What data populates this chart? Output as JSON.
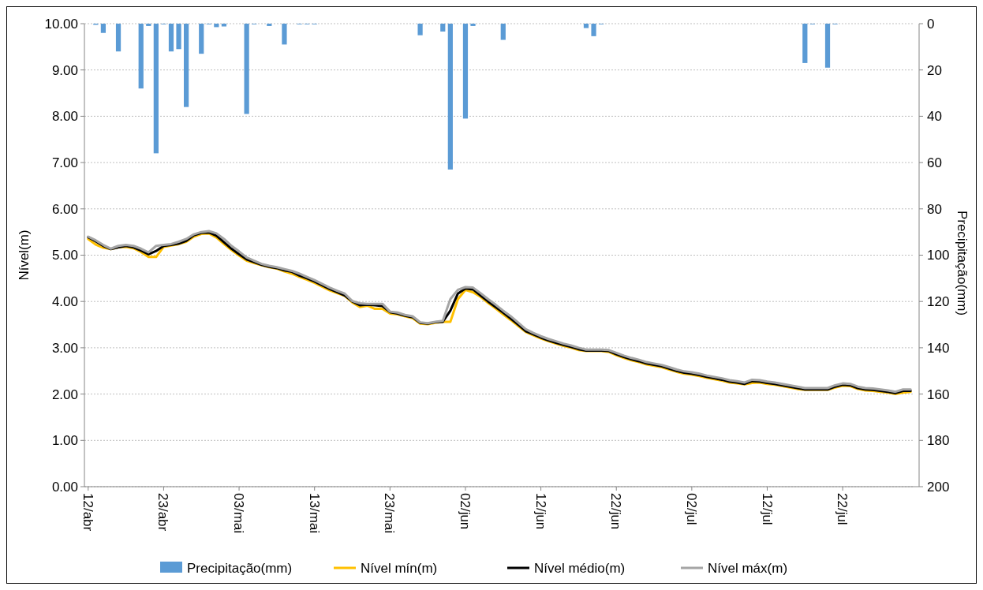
{
  "chart_data": {
    "type": "line",
    "xlabel": null,
    "ylabel": "Nível(m)",
    "y2label": "Precipitação(mm)",
    "categories": [
      "12/abr",
      null,
      null,
      null,
      null,
      null,
      null,
      null,
      null,
      null,
      "23/abr",
      null,
      null,
      null,
      null,
      null,
      null,
      null,
      null,
      null,
      "03/mai",
      null,
      null,
      null,
      null,
      null,
      null,
      null,
      null,
      null,
      "13/mai",
      null,
      null,
      null,
      null,
      null,
      null,
      null,
      null,
      null,
      "23/mai",
      null,
      null,
      null,
      null,
      null,
      null,
      null,
      null,
      null,
      "02/jun",
      null,
      null,
      null,
      null,
      null,
      null,
      null,
      null,
      null,
      "12/jun",
      null,
      null,
      null,
      null,
      null,
      null,
      null,
      null,
      null,
      "22/jun",
      null,
      null,
      null,
      null,
      null,
      null,
      null,
      null,
      null,
      "02/jul",
      null,
      null,
      null,
      null,
      null,
      null,
      null,
      null,
      null,
      "12/jul",
      null,
      null,
      null,
      null,
      null,
      null,
      null,
      null,
      null,
      "22/jul",
      null,
      null,
      null,
      null,
      null,
      null,
      null,
      null,
      null
    ],
    "series": [
      {
        "name": "Precipitação(mm)",
        "type": "bar",
        "axis": "y2",
        "color": "#5b9bd5",
        "values": [
          0,
          0.5,
          4,
          0,
          12,
          0,
          0,
          28,
          1,
          56,
          0.3,
          12,
          11,
          36,
          0,
          13,
          0.3,
          1.5,
          1.2,
          0,
          0,
          39,
          0.3,
          0,
          1,
          0,
          9,
          0,
          0.3,
          0.3,
          0.3,
          0,
          0,
          0,
          0,
          0,
          0,
          0,
          0,
          0,
          0,
          0,
          0,
          0,
          5,
          0,
          0,
          3.4,
          63,
          0,
          41,
          1,
          0,
          0,
          0,
          7,
          0,
          0,
          0,
          0,
          0,
          0,
          0,
          0,
          0,
          0,
          1.9,
          5.4,
          0.3,
          0,
          0,
          0,
          0,
          0,
          0,
          0,
          0,
          0,
          0,
          0,
          0,
          0,
          0,
          0,
          0,
          0,
          0,
          0,
          0,
          0,
          0,
          0,
          0,
          0,
          0,
          17,
          0.3,
          0,
          19,
          0.3,
          0,
          0,
          0,
          0,
          0,
          0,
          0,
          0,
          0,
          0
        ]
      },
      {
        "name": "Nível mín(m)",
        "color": "#ffc000",
        "values": [
          5.35,
          5.23,
          5.16,
          5.13,
          5.17,
          5.18,
          5.15,
          5.07,
          4.96,
          4.96,
          5.18,
          5.21,
          5.24,
          5.29,
          5.4,
          5.46,
          5.47,
          5.38,
          5.24,
          5.11,
          4.99,
          4.88,
          4.83,
          4.78,
          4.74,
          4.71,
          4.65,
          4.6,
          4.53,
          4.47,
          4.4,
          4.32,
          4.24,
          4.18,
          4.12,
          3.98,
          3.88,
          3.91,
          3.84,
          3.84,
          3.74,
          3.72,
          3.68,
          3.64,
          3.52,
          3.51,
          3.54,
          3.56,
          3.56,
          4.05,
          4.25,
          4.2,
          4.1,
          3.97,
          3.85,
          3.72,
          3.6,
          3.47,
          3.34,
          3.27,
          3.2,
          3.14,
          3.09,
          3.04,
          3.0,
          2.95,
          2.93,
          2.93,
          2.93,
          2.91,
          2.84,
          2.78,
          2.73,
          2.69,
          2.64,
          2.61,
          2.58,
          2.53,
          2.48,
          2.44,
          2.42,
          2.39,
          2.35,
          2.32,
          2.29,
          2.25,
          2.23,
          2.21,
          2.24,
          2.25,
          2.22,
          2.2,
          2.17,
          2.14,
          2.11,
          2.09,
          2.09,
          2.09,
          2.09,
          2.14,
          2.18,
          2.17,
          2.11,
          2.08,
          2.07,
          2.05,
          2.03,
          2.0,
          2.03,
          2.05
        ]
      },
      {
        "name": "Nível médio(m)",
        "color": "#000000",
        "values": [
          5.39,
          5.3,
          5.2,
          5.13,
          5.17,
          5.2,
          5.17,
          5.1,
          5.02,
          5.09,
          5.2,
          5.22,
          5.25,
          5.31,
          5.43,
          5.48,
          5.49,
          5.42,
          5.28,
          5.14,
          5.02,
          4.91,
          4.85,
          4.79,
          4.75,
          4.72,
          4.67,
          4.64,
          4.56,
          4.5,
          4.43,
          4.35,
          4.27,
          4.2,
          4.13,
          4.0,
          3.92,
          3.93,
          3.92,
          3.9,
          3.77,
          3.74,
          3.69,
          3.66,
          3.54,
          3.52,
          3.55,
          3.56,
          3.8,
          4.17,
          4.28,
          4.26,
          4.13,
          4.0,
          3.88,
          3.76,
          3.63,
          3.5,
          3.36,
          3.29,
          3.22,
          3.16,
          3.11,
          3.06,
          3.02,
          2.97,
          2.94,
          2.94,
          2.94,
          2.93,
          2.86,
          2.8,
          2.75,
          2.71,
          2.66,
          2.63,
          2.6,
          2.55,
          2.5,
          2.46,
          2.44,
          2.41,
          2.37,
          2.34,
          2.31,
          2.27,
          2.25,
          2.22,
          2.28,
          2.27,
          2.24,
          2.22,
          2.19,
          2.16,
          2.13,
          2.1,
          2.1,
          2.1,
          2.1,
          2.16,
          2.2,
          2.19,
          2.13,
          2.1,
          2.09,
          2.07,
          2.05,
          2.02,
          2.07,
          2.07
        ]
      },
      {
        "name": "Nível máx(m)",
        "color": "#a5a5a5",
        "values": [
          5.4,
          5.32,
          5.22,
          5.14,
          5.2,
          5.22,
          5.2,
          5.14,
          5.06,
          5.2,
          5.22,
          5.24,
          5.29,
          5.35,
          5.45,
          5.5,
          5.52,
          5.47,
          5.35,
          5.2,
          5.08,
          4.95,
          4.88,
          4.81,
          4.77,
          4.74,
          4.7,
          4.66,
          4.6,
          4.53,
          4.46,
          4.38,
          4.3,
          4.23,
          4.17,
          4.01,
          3.96,
          3.95,
          3.95,
          3.95,
          3.78,
          3.76,
          3.71,
          3.68,
          3.55,
          3.53,
          3.56,
          3.58,
          4.05,
          4.25,
          4.31,
          4.3,
          4.18,
          4.05,
          3.93,
          3.8,
          3.68,
          3.54,
          3.4,
          3.32,
          3.25,
          3.19,
          3.14,
          3.09,
          3.05,
          3.0,
          2.96,
          2.96,
          2.96,
          2.95,
          2.89,
          2.83,
          2.78,
          2.74,
          2.69,
          2.66,
          2.63,
          2.58,
          2.53,
          2.49,
          2.47,
          2.44,
          2.4,
          2.37,
          2.34,
          2.3,
          2.28,
          2.25,
          2.31,
          2.3,
          2.27,
          2.25,
          2.22,
          2.19,
          2.16,
          2.13,
          2.13,
          2.13,
          2.13,
          2.19,
          2.23,
          2.22,
          2.16,
          2.13,
          2.12,
          2.1,
          2.08,
          2.05,
          2.1,
          2.1
        ]
      }
    ],
    "ylim": [
      0,
      10
    ],
    "yticks": [
      {
        "value": 0,
        "label": "0.00"
      },
      {
        "value": 1,
        "label": "1.00"
      },
      {
        "value": 2,
        "label": "2.00"
      },
      {
        "value": 3,
        "label": "3.00"
      },
      {
        "value": 4,
        "label": "4.00"
      },
      {
        "value": 5,
        "label": "5.00"
      },
      {
        "value": 6,
        "label": "6.00"
      },
      {
        "value": 7,
        "label": "7.00"
      },
      {
        "value": 8,
        "label": "8.00"
      },
      {
        "value": 9,
        "label": "9.00"
      },
      {
        "value": 10,
        "label": "10.00"
      }
    ],
    "y2lim": [
      200,
      0
    ],
    "y2ticks": [
      0,
      20,
      40,
      60,
      80,
      100,
      120,
      140,
      160,
      180,
      200
    ],
    "grid": "y",
    "legend": "bottom",
    "marker": "none",
    "line_style": "solid"
  }
}
